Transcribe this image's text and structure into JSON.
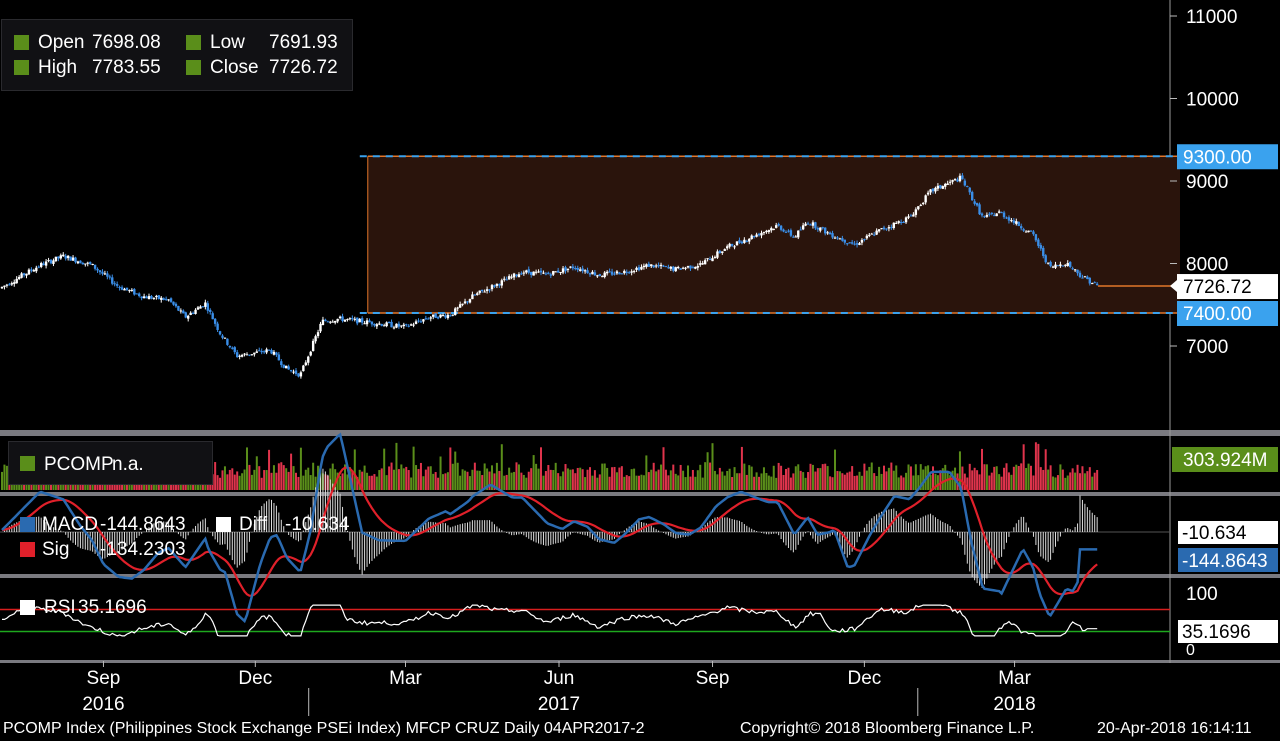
{
  "ohlc_legend": {
    "open_label": "Open",
    "open_value": "7698.08",
    "high_label": "High",
    "high_value": "7783.55",
    "low_label": "Low",
    "low_value": "7691.93",
    "close_label": "Close",
    "close_value": "7726.72",
    "color": "#5a8e1a"
  },
  "volume_legend": {
    "label": "PCOMP",
    "value": "n.a."
  },
  "macd_legend": {
    "macd_label": "MACD",
    "macd_value": "-144.8643",
    "diff_label": "Diff",
    "diff_value": "-10.634",
    "sig_label": "Sig",
    "sig_value": "-134.2303"
  },
  "rsi_legend": {
    "label": "RSI",
    "value": "35.1696"
  },
  "footer": {
    "left": "PCOMP Index (Philippines Stock Exchange PSEi Index) MFCP CRUZ  Daily 04APR2017-2",
    "copyright": "Copyright© 2018 Bloomberg Finance L.P.",
    "timestamp": "20-Apr-2018 16:14:11"
  },
  "colors": {
    "up": "#ffffff",
    "down": "#3a8ee8",
    "box_fill": "#2a140c",
    "box_line": "#e2762a",
    "level_tag": "#3aa2ee",
    "vol_up": "#5a8e1a",
    "vol_down": "#e0344c",
    "macd": "#2a6ab0",
    "sig": "#e0202a",
    "rsi": "#ffffff",
    "rsi_upper": "#d81e1e",
    "rsi_lower": "#1ea81e"
  },
  "chart_data": [
    {
      "type": "candlestick",
      "title": "",
      "ylim": [
        6300,
        11200
      ],
      "y_ticks": [
        7000,
        8000,
        9000,
        10000,
        11000
      ],
      "y_tick_labels": [
        "7000",
        "8000",
        "9000",
        "10000",
        "11000"
      ],
      "x_start": "2016-07",
      "x_end": "2018-04-20",
      "x_ticks": [
        {
          "date": "2016-09",
          "label": "Sep"
        },
        {
          "date": "2016-12",
          "label": "Dec"
        },
        {
          "date": "2017-03",
          "label": "Mar"
        },
        {
          "date": "2017-06",
          "label": "Jun"
        },
        {
          "date": "2017-09",
          "label": "Sep"
        },
        {
          "date": "2017-12",
          "label": "Dec"
        },
        {
          "date": "2018-03",
          "label": "Mar"
        }
      ],
      "year_labels": [
        {
          "date": "2016-09",
          "label": "2016"
        },
        {
          "date": "2017-06",
          "label": "2017"
        },
        {
          "date": "2018-03",
          "label": "2018"
        }
      ],
      "close_path": [
        {
          "date": "2016-07-01",
          "close": 7700
        },
        {
          "date": "2016-07-25",
          "close": 7980
        },
        {
          "date": "2016-08-08",
          "close": 8090
        },
        {
          "date": "2016-08-25",
          "close": 7980
        },
        {
          "date": "2016-09-10",
          "close": 7720
        },
        {
          "date": "2016-09-25",
          "close": 7600
        },
        {
          "date": "2016-10-10",
          "close": 7560
        },
        {
          "date": "2016-10-20",
          "close": 7350
        },
        {
          "date": "2016-11-01",
          "close": 7520
        },
        {
          "date": "2016-11-10",
          "close": 7150
        },
        {
          "date": "2016-11-20",
          "close": 6880
        },
        {
          "date": "2016-12-10",
          "close": 6950
        },
        {
          "date": "2016-12-20",
          "close": 6720
        },
        {
          "date": "2016-12-28",
          "close": 6650
        },
        {
          "date": "2017-01-10",
          "close": 7300
        },
        {
          "date": "2017-01-20",
          "close": 7330
        },
        {
          "date": "2017-02-10",
          "close": 7280
        },
        {
          "date": "2017-03-01",
          "close": 7230
        },
        {
          "date": "2017-03-15",
          "close": 7350
        },
        {
          "date": "2017-03-28",
          "close": 7380
        },
        {
          "date": "2017-04-10",
          "close": 7600
        },
        {
          "date": "2017-04-25",
          "close": 7750
        },
        {
          "date": "2017-05-10",
          "close": 7900
        },
        {
          "date": "2017-05-25",
          "close": 7870
        },
        {
          "date": "2017-06-10",
          "close": 7960
        },
        {
          "date": "2017-06-25",
          "close": 7860
        },
        {
          "date": "2017-07-10",
          "close": 7900
        },
        {
          "date": "2017-07-25",
          "close": 7980
        },
        {
          "date": "2017-08-10",
          "close": 7930
        },
        {
          "date": "2017-08-25",
          "close": 7990
        },
        {
          "date": "2017-09-10",
          "close": 8200
        },
        {
          "date": "2017-09-25",
          "close": 8330
        },
        {
          "date": "2017-10-10",
          "close": 8460
        },
        {
          "date": "2017-10-20",
          "close": 8320
        },
        {
          "date": "2017-10-28",
          "close": 8510
        },
        {
          "date": "2017-11-10",
          "close": 8360
        },
        {
          "date": "2017-11-25",
          "close": 8230
        },
        {
          "date": "2017-12-10",
          "close": 8400
        },
        {
          "date": "2017-12-28",
          "close": 8560
        },
        {
          "date": "2018-01-10",
          "close": 8880
        },
        {
          "date": "2018-01-28",
          "close": 9040
        },
        {
          "date": "2018-02-10",
          "close": 8550
        },
        {
          "date": "2018-02-20",
          "close": 8620
        },
        {
          "date": "2018-03-01",
          "close": 8500
        },
        {
          "date": "2018-03-12",
          "close": 8350
        },
        {
          "date": "2018-03-22",
          "close": 7950
        },
        {
          "date": "2018-04-01",
          "close": 8010
        },
        {
          "date": "2018-04-10",
          "close": 7850
        },
        {
          "date": "2018-04-20",
          "close": 7726.72
        }
      ],
      "levels": [
        {
          "value": 9300,
          "label": "9300.00",
          "style": "dashed"
        },
        {
          "value": 7400,
          "label": "7400.00",
          "style": "dashed"
        }
      ],
      "range_box": {
        "from": "2017-02-10",
        "to": "2018-04-20",
        "low": 7400,
        "high": 9300
      },
      "last_close": {
        "value": 7726.72,
        "label": "7726.72"
      }
    },
    {
      "type": "bar",
      "series": [
        {
          "name": "PCOMP",
          "last_label": "303.924M"
        }
      ]
    },
    {
      "type": "line",
      "series": [
        {
          "name": "MACD",
          "last": -144.8643,
          "last_label": "-144.8643"
        },
        {
          "name": "Sig",
          "last": -134.2303
        },
        {
          "name": "Diff",
          "last": -10.634,
          "last_label": "-10.634"
        }
      ]
    },
    {
      "type": "line",
      "ylim": [
        0,
        100
      ],
      "y_tick_labels": [
        "100",
        "0"
      ],
      "levels": [
        70,
        30
      ],
      "series": [
        {
          "name": "RSI",
          "last": 35.1696,
          "last_label": "35.1696"
        }
      ]
    }
  ]
}
